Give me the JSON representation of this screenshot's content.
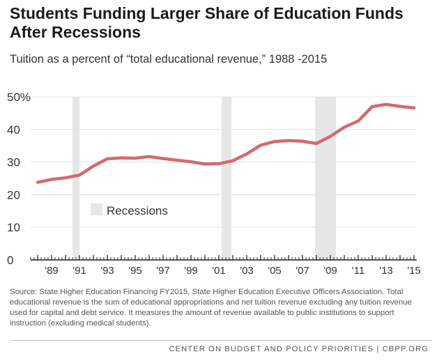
{
  "title": "Students Funding Larger Share of Education Funds After Recessions",
  "subtitle": "Tuition as a percent of “total educational revenue,” 1988 -2015",
  "source": "Source: State Higher Education Financing FY2015, State Higher Education Executive Officers Association. Total educational revenue is the sum of educational appropriations and net tuition revenue excluding any tuition revenue used for capital and debt service. It measures the amount of revenue available to public institutions to support instruction (excluding medical students).",
  "footer": "CENTER ON BUDGET AND POLICY PRIORITIES | CBPP.ORG",
  "colors": {
    "line": "#d46a6e",
    "recession": "#e6e6e6",
    "axis": "#222222"
  },
  "chart_data": {
    "type": "line",
    "title": "Students Funding Larger Share of Education Funds After Recessions",
    "subtitle": "Tuition as a percent of “total educational revenue,” 1988 -2015",
    "xlabel": "",
    "ylabel": "",
    "ylim": [
      0,
      50
    ],
    "xlim": [
      1987.5,
      2015.2
    ],
    "yticks": [
      0,
      10,
      20,
      30,
      40,
      50
    ],
    "ytick_labels": [
      "0",
      "10",
      "20",
      "30",
      "40",
      "50%"
    ],
    "xticks": [
      1989,
      1991,
      1993,
      1995,
      1997,
      1999,
      2001,
      2003,
      2005,
      2007,
      2009,
      2011,
      2013,
      2015
    ],
    "xtick_labels": [
      "'89",
      "'91",
      "'93",
      "'95",
      "'97",
      "'99",
      "'01",
      "'03",
      "'05",
      "'07",
      "'09",
      "'11",
      "'13",
      "'15"
    ],
    "grid": "horizontal",
    "recessions": [
      [
        1990.5,
        1991.0
      ],
      [
        2001.2,
        2001.9
      ],
      [
        2007.9,
        2009.4
      ]
    ],
    "legend": [
      {
        "label": "Recessions",
        "kind": "shaded-band"
      }
    ],
    "legend_position": "center-left",
    "series": [
      {
        "x": [
          1988,
          1989,
          1990,
          1991,
          1992,
          1993,
          1994,
          1995,
          1996,
          1997,
          1998,
          1999,
          2000,
          2001,
          2002,
          2003,
          2004,
          2005,
          2006,
          2007,
          2008,
          2009,
          2010,
          2011,
          2012,
          2013,
          2014,
          2015
        ],
        "y": [
          23.8,
          24.7,
          25.2,
          26.0,
          28.8,
          31.0,
          31.3,
          31.2,
          31.7,
          31.1,
          30.6,
          30.1,
          29.4,
          29.5,
          30.4,
          32.5,
          35.2,
          36.3,
          36.6,
          36.4,
          35.7,
          37.9,
          40.7,
          42.6,
          47.0,
          47.7,
          47.1,
          46.6
        ]
      }
    ]
  }
}
